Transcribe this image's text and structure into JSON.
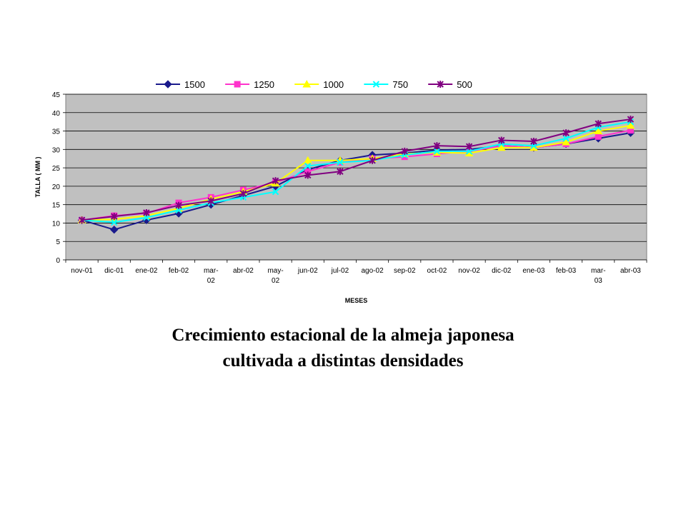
{
  "chart_data": {
    "type": "line",
    "title": "",
    "xlabel": "MESES",
    "ylabel": "TALLA ( MM )",
    "ylim": [
      0,
      45
    ],
    "yticks": [
      0,
      5,
      10,
      15,
      20,
      25,
      30,
      35,
      40,
      45
    ],
    "grid": true,
    "legend": "top",
    "categories": [
      [
        "nov-01"
      ],
      [
        "dic-01"
      ],
      [
        "ene-02"
      ],
      [
        "feb-02"
      ],
      [
        "mar-",
        "02"
      ],
      [
        "abr-02"
      ],
      [
        "may-",
        "02"
      ],
      [
        "jun-02"
      ],
      [
        "jul-02"
      ],
      [
        "ago-02"
      ],
      [
        "sep-02"
      ],
      [
        "oct-02"
      ],
      [
        "nov-02"
      ],
      [
        "dic-02"
      ],
      [
        "ene-03"
      ],
      [
        "feb-03"
      ],
      [
        "mar-",
        "03"
      ],
      [
        "abr-03"
      ]
    ],
    "series": [
      {
        "name": "1500",
        "color": "#1a1a8c",
        "marker": "diamond",
        "values": [
          10.8,
          8.2,
          10.8,
          12.6,
          15.0,
          17.5,
          20.0,
          24.5,
          27.0,
          28.5,
          29.0,
          29.8,
          30.0,
          31.0,
          30.5,
          31.5,
          33.0,
          34.5
        ]
      },
      {
        "name": "1250",
        "color": "#ff33cc",
        "marker": "square",
        "values": [
          10.8,
          12.0,
          12.6,
          15.5,
          17.0,
          19.0,
          21.0,
          24.0,
          26.5,
          27.5,
          28.0,
          28.8,
          29.5,
          31.0,
          30.5,
          31.5,
          33.5,
          35.2
        ]
      },
      {
        "name": "1000",
        "color": "#ffff00",
        "marker": "triangle",
        "values": [
          10.8,
          11.0,
          12.0,
          14.0,
          16.5,
          18.5,
          20.8,
          27.0,
          27.0,
          27.5,
          28.8,
          29.2,
          29.0,
          30.5,
          30.5,
          32.0,
          35.0,
          36.5
        ]
      },
      {
        "name": "750",
        "color": "#00ffff",
        "marker": "x",
        "values": [
          10.8,
          10.2,
          11.5,
          13.5,
          15.5,
          17.0,
          18.5,
          25.5,
          26.5,
          27.0,
          28.5,
          29.5,
          29.5,
          31.5,
          31.0,
          33.0,
          36.0,
          37.5
        ]
      },
      {
        "name": "500",
        "color": "#800080",
        "marker": "asterisk",
        "values": [
          10.8,
          11.8,
          12.8,
          14.8,
          16.0,
          18.0,
          21.5,
          23.0,
          24.0,
          27.0,
          29.5,
          31.0,
          30.8,
          32.5,
          32.2,
          34.5,
          37.0,
          38.2
        ]
      }
    ]
  },
  "caption": {
    "line1": "Crecimiento estacional de la almeja japonesa",
    "line2": "cultivada a distintas densidades"
  }
}
